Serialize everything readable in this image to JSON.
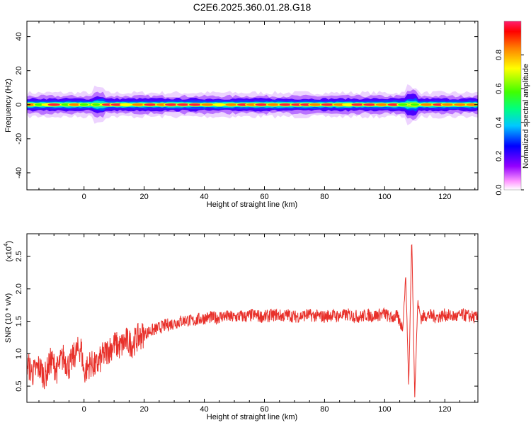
{
  "title": "C2E6.2025.360.01.28.G18",
  "chart_data": [
    {
      "type": "heatmap",
      "xlabel": "Height of straight line (km)",
      "ylabel": "Frequency (Hz)",
      "xlim": [
        -19,
        131
      ],
      "ylim": [
        -50,
        49
      ],
      "xticks": [
        0,
        20,
        40,
        60,
        80,
        100,
        120
      ],
      "yticks": [
        -40,
        -20,
        0,
        20,
        40
      ],
      "xtick_labels": [
        "0",
        "20",
        "40",
        "60",
        "80",
        "100",
        "120"
      ],
      "ytick_labels": [
        "-40",
        "-20",
        "0",
        "20",
        "40"
      ],
      "colorbar": {
        "label": "Normalized spectral amplitude",
        "range": [
          0,
          1
        ],
        "ticks": [
          0.0,
          0.2,
          0.4,
          0.6,
          0.8
        ],
        "tick_labels": [
          "0.0",
          "0.2",
          "0.4",
          "0.6",
          "0.8"
        ],
        "colormap": [
          "#ffffff",
          "#ff66ff",
          "#9400ff",
          "#0000ff",
          "#00c8ff",
          "#00ff80",
          "#40ff00",
          "#ffff00",
          "#ff8000",
          "#ff0000",
          "#ff1e6e"
        ]
      },
      "band": {
        "center_frequency_hz": 0,
        "core_points_x": [
          -18,
          -15,
          -12,
          -10,
          -6,
          -3,
          0,
          4,
          8,
          11,
          14,
          18,
          22,
          26,
          29,
          33,
          37,
          41,
          45,
          49,
          53,
          56,
          59,
          63,
          67,
          71,
          74,
          77,
          81,
          85,
          88,
          91,
          95,
          99,
          103,
          106,
          110,
          114,
          118,
          121,
          125,
          129
        ],
        "core_points_amp": [
          0.9,
          0.5,
          0.7,
          0.95,
          0.6,
          0.9,
          0.5,
          0.4,
          0.95,
          0.98,
          0.7,
          0.9,
          0.95,
          0.85,
          0.98,
          0.95,
          0.98,
          0.9,
          0.7,
          0.9,
          0.95,
          0.9,
          0.98,
          0.9,
          0.95,
          0.98,
          0.95,
          0.9,
          0.98,
          0.9,
          0.7,
          0.95,
          0.98,
          0.9,
          0.95,
          0.6,
          0.5,
          0.9,
          0.95,
          0.85,
          0.9,
          0.8
        ]
      }
    },
    {
      "type": "line",
      "xlabel": "Height of straight line (km)",
      "ylabel": "SNR (10 * v/v)",
      "multiplier_label": "(x10",
      "multiplier_exp": "4",
      "xlim": [
        -19,
        131
      ],
      "ylim": [
        0.25,
        2.85
      ],
      "xticks": [
        0,
        20,
        40,
        60,
        80,
        100,
        120
      ],
      "yticks": [
        0.5,
        1.0,
        1.5,
        2.0,
        2.5
      ],
      "xtick_labels": [
        "0",
        "20",
        "40",
        "60",
        "80",
        "100",
        "120"
      ],
      "ytick_labels": [
        "0.5",
        "1.0",
        "1.5",
        "2.0",
        "2.5"
      ],
      "series": [
        {
          "color": "#e8302a",
          "x": [
            -19,
            -17,
            -15,
            -13,
            -11,
            -9,
            -7,
            -5,
            -3,
            -1,
            0,
            2,
            4,
            6,
            8,
            10,
            12,
            14,
            16,
            18,
            20,
            22,
            24,
            26,
            28,
            30,
            32,
            34,
            36,
            38,
            40,
            42,
            44,
            46,
            48,
            50,
            52,
            54,
            56,
            58,
            60,
            62,
            64,
            66,
            68,
            70,
            72,
            74,
            76,
            78,
            80,
            82,
            84,
            86,
            88,
            90,
            92,
            94,
            96,
            98,
            100,
            102,
            104,
            106,
            107,
            108,
            109,
            110,
            111,
            112,
            114,
            116,
            118,
            120,
            122,
            124,
            126,
            128,
            131
          ],
          "y": [
            0.85,
            0.7,
            0.8,
            0.65,
            0.9,
            0.75,
            0.95,
            0.8,
            1.0,
            1.1,
            0.7,
            0.85,
            0.8,
            0.95,
            1.05,
            1.15,
            1.1,
            1.2,
            1.15,
            1.25,
            1.3,
            1.35,
            1.38,
            1.42,
            1.45,
            1.47,
            1.5,
            1.52,
            1.5,
            1.53,
            1.55,
            1.56,
            1.55,
            1.58,
            1.57,
            1.56,
            1.58,
            1.57,
            1.6,
            1.58,
            1.57,
            1.59,
            1.6,
            1.58,
            1.6,
            1.57,
            1.58,
            1.6,
            1.59,
            1.58,
            1.57,
            1.6,
            1.58,
            1.59,
            1.6,
            1.58,
            1.57,
            1.6,
            1.58,
            1.6,
            1.62,
            1.55,
            1.58,
            1.4,
            2.2,
            0.5,
            2.8,
            0.35,
            1.8,
            1.55,
            1.6,
            1.58,
            1.57,
            1.6,
            1.58,
            1.57,
            1.6,
            1.58,
            1.55
          ]
        }
      ]
    }
  ]
}
